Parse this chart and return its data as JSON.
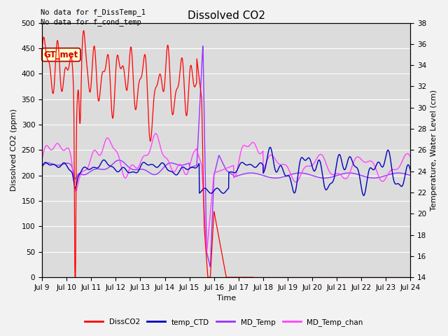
{
  "title": "Dissolved CO2",
  "xlabel": "Time",
  "ylabel_left": "Dissolved CO2 (ppm)",
  "ylabel_right": "Temperature, Water Level (cm)",
  "annotation_lines": [
    "No data for f_DissTemp_1",
    "No data for f_cond_temp"
  ],
  "gt_met_label": "GT_met",
  "legend_entries": [
    "DissCO2",
    "temp_CTD",
    "MD_Temp",
    "MD_Temp_chan"
  ],
  "legend_colors": [
    "#ff0000",
    "#0000bb",
    "#9933ff",
    "#ff44ff"
  ],
  "ylim_left": [
    0,
    500
  ],
  "ylim_right": [
    14,
    38
  ],
  "xlim": [
    0,
    15
  ],
  "x_tick_labels": [
    "Jul 9",
    "Jul 10",
    "Jul 11",
    "Jul 12",
    "Jul 13",
    "Jul 14",
    "Jul 15",
    "Jul 16",
    "Jul 17",
    "Jul 18",
    "Jul 19",
    "Jul 20",
    "Jul 21",
    "Jul 22",
    "Jul 23",
    "Jul 24"
  ],
  "background_color": "#dcdcdc",
  "grid_color": "#ffffff",
  "DissCO2_color": "#ff0000",
  "temp_CTD_color": "#0000bb",
  "MD_Temp_color": "#9933ff",
  "MD_Temp_chan_color": "#ff44ff"
}
